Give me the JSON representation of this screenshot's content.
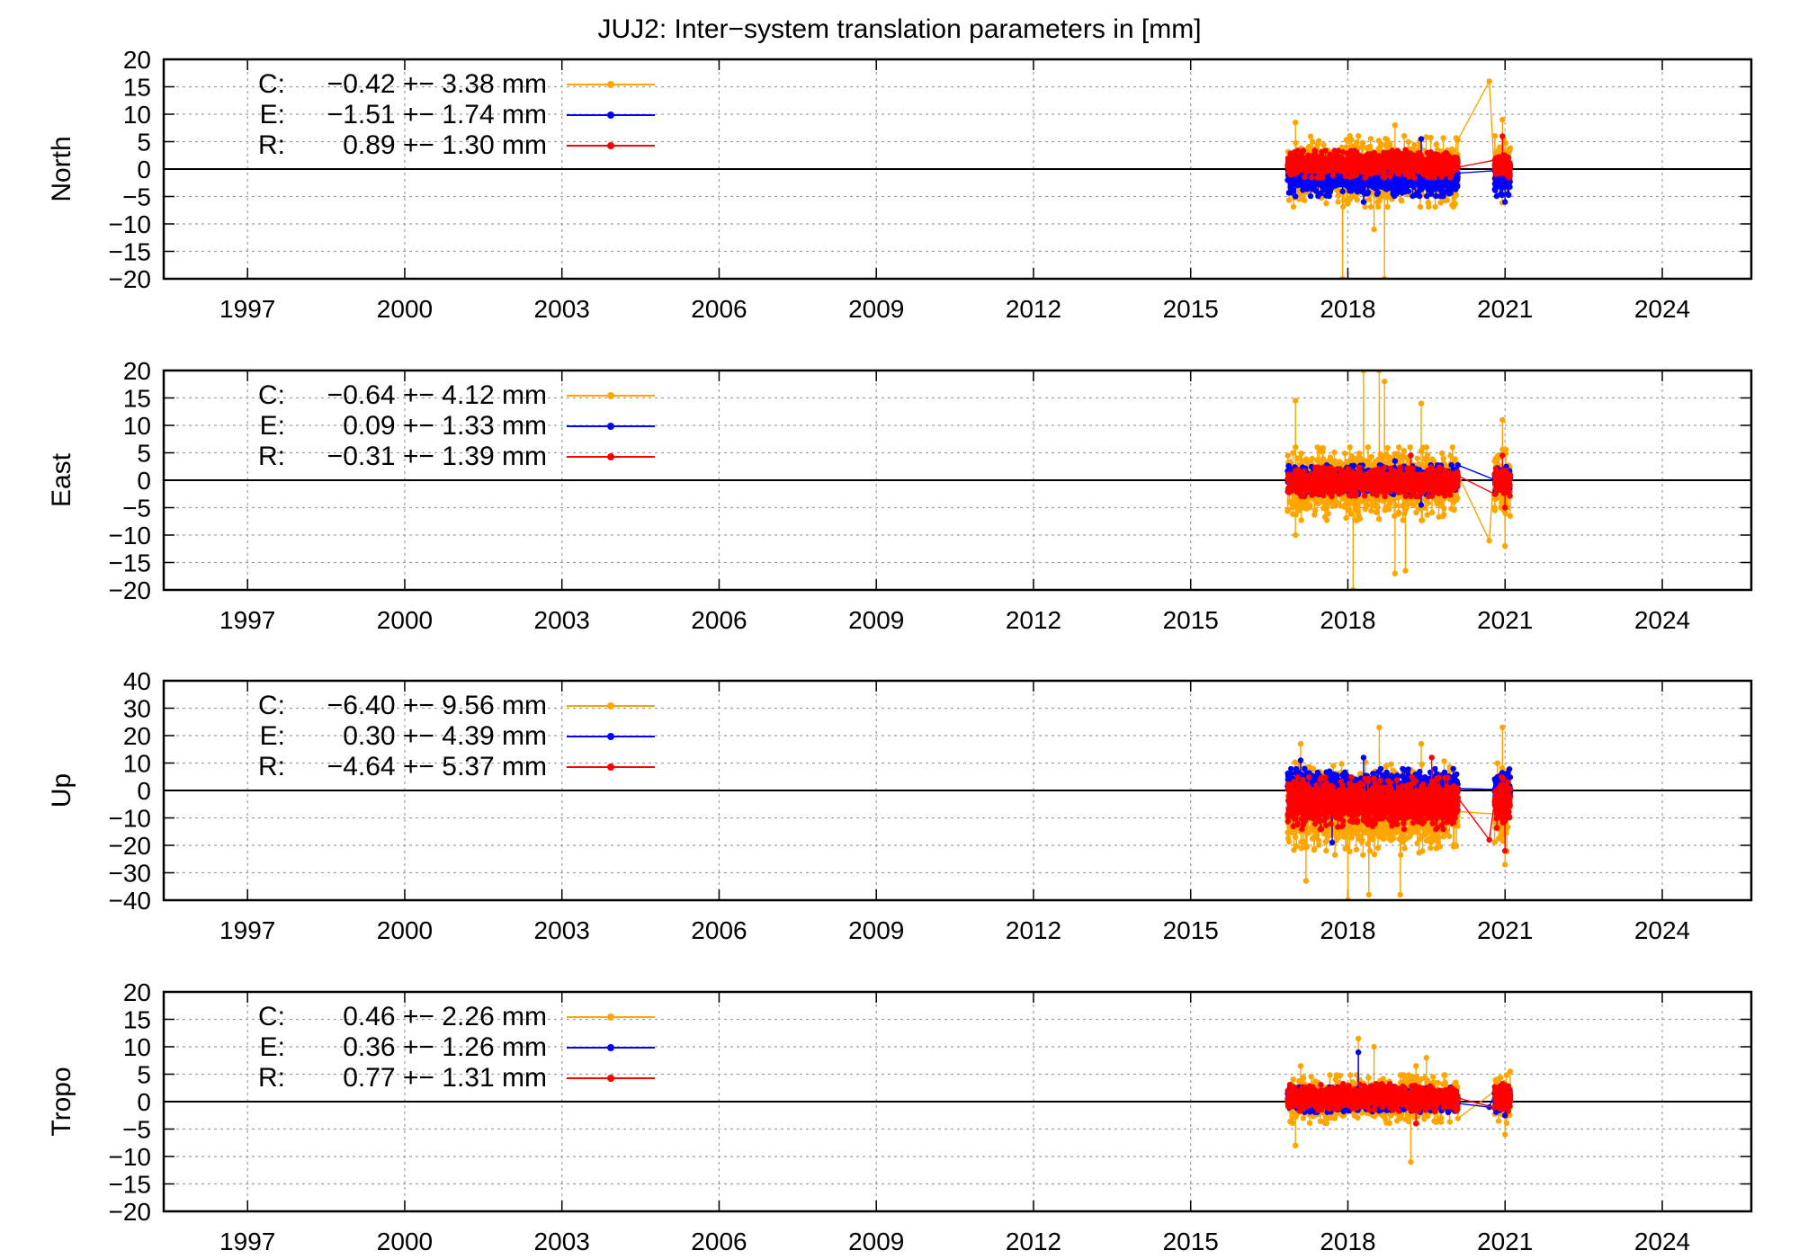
{
  "title": "JUJ2: Inter−system translation parameters in [mm]",
  "colors": {
    "C": "#ffa500",
    "E": "#0000ff",
    "R": "#ff0000"
  },
  "chart_data": [
    {
      "type": "line",
      "ylabel": "North",
      "xlim": [
        1995.4,
        2025.7
      ],
      "ylim": [
        -20,
        20
      ],
      "x_ticks": [
        "1997",
        "2000",
        "2003",
        "2006",
        "2009",
        "2012",
        "2015",
        "2018",
        "2021",
        "2024"
      ],
      "y_ticks": [
        "20",
        "15",
        "10",
        "5",
        "0",
        "−5",
        "−10",
        "−15",
        "−20"
      ],
      "grid": true,
      "legend_position": "top-left",
      "series": [
        {
          "name": "C",
          "label": "−0.42 +− 3.38 mm",
          "mean": -0.42,
          "std": 3.38,
          "spread": 3.4,
          "extremes": [
            [
              2017.0,
              8.5
            ],
            [
              2017.9,
              -20.0
            ],
            [
              2018.5,
              -11.0
            ],
            [
              2018.7,
              -20.0
            ],
            [
              2020.7,
              16.0
            ],
            [
              2020.95,
              9.0
            ],
            [
              2018.9,
              8.0
            ]
          ]
        },
        {
          "name": "E",
          "label": "−1.51 +− 1.74 mm",
          "mean": -1.51,
          "std": 1.74,
          "spread": 1.8,
          "extremes": [
            [
              2017.0,
              -5.0
            ],
            [
              2018.3,
              -6.0
            ],
            [
              2019.4,
              5.5
            ],
            [
              2021.0,
              -6.0
            ]
          ]
        },
        {
          "name": "R",
          "label": "0.89 +− 1.30 mm",
          "mean": 0.89,
          "std": 1.3,
          "spread": 1.3,
          "extremes": [
            [
              2019.1,
              3.5
            ],
            [
              2020.95,
              6.0
            ]
          ]
        }
      ]
    },
    {
      "type": "line",
      "ylabel": "East",
      "xlim": [
        1995.4,
        2025.7
      ],
      "ylim": [
        -20,
        20
      ],
      "x_ticks": [
        "1997",
        "2000",
        "2003",
        "2006",
        "2009",
        "2012",
        "2015",
        "2018",
        "2021",
        "2024"
      ],
      "y_ticks": [
        "20",
        "15",
        "10",
        "5",
        "0",
        "−5",
        "−10",
        "−15",
        "−20"
      ],
      "grid": true,
      "legend_position": "top-left",
      "series": [
        {
          "name": "C",
          "label": "−0.64 +− 4.12 mm",
          "mean": -0.64,
          "std": 4.12,
          "spread": 3.5,
          "extremes": [
            [
              2017.0,
              14.5
            ],
            [
              2017.0,
              -10.0
            ],
            [
              2018.1,
              -20.0
            ],
            [
              2018.3,
              20.0
            ],
            [
              2018.6,
              20.0
            ],
            [
              2018.7,
              18.0
            ],
            [
              2018.9,
              -17.0
            ],
            [
              2019.1,
              -16.5
            ],
            [
              2019.4,
              14.0
            ],
            [
              2020.7,
              -11.0
            ],
            [
              2020.95,
              11.0
            ],
            [
              2021.0,
              -12.0
            ]
          ]
        },
        {
          "name": "E",
          "label": "0.09 +− 1.33 mm",
          "mean": 0.09,
          "std": 1.33,
          "spread": 1.4,
          "extremes": [
            [
              2018.9,
              3.5
            ],
            [
              2019.4,
              -4.5
            ]
          ]
        },
        {
          "name": "R",
          "label": "−0.31 +− 1.39 mm",
          "mean": -0.31,
          "std": 1.39,
          "spread": 1.4,
          "extremes": [
            [
              2019.2,
              4.5
            ],
            [
              2020.95,
              4.5
            ],
            [
              2021.0,
              -5.0
            ]
          ]
        }
      ]
    },
    {
      "type": "line",
      "ylabel": "Up",
      "xlim": [
        1995.4,
        2025.7
      ],
      "ylim": [
        -40,
        40
      ],
      "x_ticks": [
        "1997",
        "2000",
        "2003",
        "2006",
        "2009",
        "2012",
        "2015",
        "2018",
        "2021",
        "2024"
      ],
      "y_ticks": [
        "40",
        "30",
        "20",
        "10",
        "0",
        "−10",
        "−20",
        "−30",
        "−40"
      ],
      "grid": true,
      "legend_position": "top-left",
      "series": [
        {
          "name": "C",
          "label": "−6.40 +− 9.56 mm",
          "mean": -6.4,
          "std": 9.56,
          "spread": 9.0,
          "extremes": [
            [
              2017.1,
              17.0
            ],
            [
              2017.2,
              -33.0
            ],
            [
              2018.0,
              -40.0
            ],
            [
              2018.4,
              -38.0
            ],
            [
              2018.6,
              23.0
            ],
            [
              2019.0,
              -38.0
            ],
            [
              2019.4,
              17.0
            ],
            [
              2020.95,
              23.0
            ],
            [
              2021.0,
              -27.0
            ]
          ]
        },
        {
          "name": "E",
          "label": "0.30 +− 4.39 mm",
          "mean": 0.3,
          "std": 4.39,
          "spread": 4.0,
          "extremes": [
            [
              2017.1,
              11.0
            ],
            [
              2018.3,
              12.0
            ],
            [
              2017.7,
              -19.0
            ],
            [
              2020.95,
              6.0
            ]
          ]
        },
        {
          "name": "R",
          "label": "−4.64 +− 5.37 mm",
          "mean": -4.64,
          "std": 5.37,
          "spread": 5.0,
          "extremes": [
            [
              2019.6,
              12.0
            ],
            [
              2020.7,
              -18.0
            ],
            [
              2021.0,
              -22.0
            ]
          ]
        }
      ]
    },
    {
      "type": "line",
      "ylabel": "Tropo",
      "xlim": [
        1995.4,
        2025.7
      ],
      "ylim": [
        -20,
        20
      ],
      "x_ticks": [
        "1997",
        "2000",
        "2003",
        "2006",
        "2009",
        "2012",
        "2015",
        "2018",
        "2021",
        "2024"
      ],
      "y_ticks": [
        "20",
        "15",
        "10",
        "5",
        "0",
        "−5",
        "−10",
        "−15",
        "−20"
      ],
      "grid": true,
      "legend_position": "top-left",
      "series": [
        {
          "name": "C",
          "label": "0.46 +− 2.26 mm",
          "mean": 0.46,
          "std": 2.26,
          "spread": 2.3,
          "extremes": [
            [
              2017.0,
              -8.0
            ],
            [
              2017.1,
              6.5
            ],
            [
              2018.2,
              11.5
            ],
            [
              2018.5,
              10.0
            ],
            [
              2019.3,
              6.5
            ],
            [
              2019.2,
              -11.0
            ],
            [
              2019.5,
              8.0
            ],
            [
              2021.0,
              -6.0
            ],
            [
              2021.1,
              5.5
            ]
          ]
        },
        {
          "name": "E",
          "label": "0.36 +− 1.26 mm",
          "mean": 0.36,
          "std": 1.26,
          "spread": 1.2,
          "extremes": [
            [
              2018.2,
              9.0
            ],
            [
              2020.7,
              -1.0
            ],
            [
              2021.0,
              -2.5
            ]
          ]
        },
        {
          "name": "R",
          "label": "0.77 +− 1.31 mm",
          "mean": 0.77,
          "std": 1.31,
          "spread": 1.3,
          "extremes": [
            [
              2019.3,
              -4.0
            ],
            [
              2021.0,
              3.0
            ]
          ]
        }
      ]
    }
  ]
}
